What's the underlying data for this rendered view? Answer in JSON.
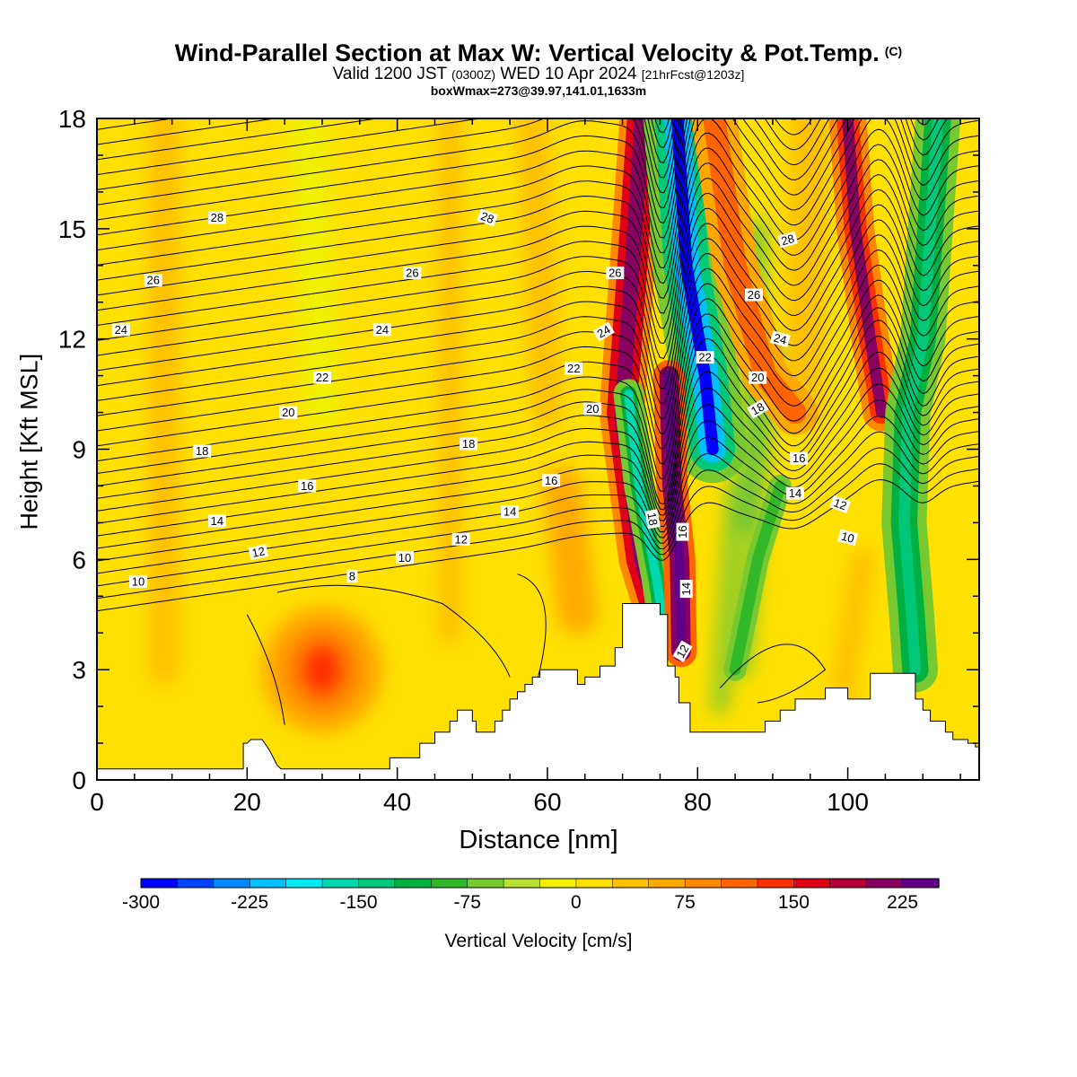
{
  "title": {
    "main": "Wind-Parallel Section at Max W: Vertical Velocity & Pot.Temp.",
    "copyright": "(C)",
    "sub_valid": "Valid 1200 JST",
    "sub_utc": "(0300Z)",
    "sub_date": "WED 10 Apr 2024",
    "sub_fcst": "[21hrFcst@1203z]",
    "info": "boxWmax=273@39.97,141.01,1633m"
  },
  "axes": {
    "xlabel": "Distance [nm]",
    "ylabel": "Height [Kft MSL]",
    "x_ticks": [
      "0",
      "20",
      "40",
      "60",
      "80",
      "100"
    ],
    "y_ticks": [
      "0",
      "3",
      "6",
      "9",
      "12",
      "15",
      "18"
    ]
  },
  "colorbar": {
    "label": "Vertical Velocity [cm/s]",
    "tick_labels": [
      "-300",
      "-225",
      "-150",
      "-75",
      "0",
      "75",
      "150",
      "225"
    ],
    "colors": [
      "#0000ff",
      "#0044ff",
      "#0088ff",
      "#00c0ff",
      "#00e8f0",
      "#00d8b0",
      "#00c878",
      "#00b040",
      "#30b828",
      "#78c830",
      "#b8e030",
      "#f0f000",
      "#ffe000",
      "#ffc000",
      "#ffa800",
      "#ff8800",
      "#ff6400",
      "#ff3000",
      "#e00018",
      "#b80038",
      "#880060",
      "#600088"
    ]
  },
  "chart_data": {
    "type": "heatmap",
    "title": "Wind-Parallel Section at Max W: Vertical Velocity & Pot.Temp.",
    "xlabel": "Distance [nm]",
    "ylabel": "Height [Kft MSL]",
    "xlim": [
      0,
      117.5
    ],
    "ylim": [
      0,
      18
    ],
    "field": "Vertical Velocity [cm/s]",
    "color_range": [
      -300,
      262
    ],
    "color_step": 25,
    "terrain_profile": {
      "x": [
        0,
        19.5,
        19.5,
        20,
        20.5,
        21,
        22,
        23,
        23.5,
        24,
        24.5,
        39,
        39,
        40,
        40,
        43,
        43,
        45,
        45,
        47,
        47,
        48,
        48,
        49,
        49,
        50,
        50,
        50.5,
        50.5,
        53,
        53,
        54,
        54,
        55,
        55,
        56,
        56,
        57,
        57,
        58,
        58,
        59,
        59,
        64,
        64,
        65,
        65,
        67,
        67,
        69,
        69,
        70,
        70,
        75,
        75,
        76,
        76,
        77,
        77,
        77.5,
        77.5,
        79,
        79,
        80,
        80,
        85,
        85,
        89,
        89,
        91,
        91,
        93,
        93,
        97,
        97,
        100,
        100,
        103,
        103,
        109,
        109,
        110,
        110,
        111,
        111,
        112,
        112,
        113,
        113,
        114,
        114,
        116,
        116,
        117,
        117,
        117.5
      ],
      "y": [
        0.3,
        0.3,
        1,
        1,
        1.1,
        1.1,
        1.1,
        0.8,
        0.6,
        0.4,
        0.3,
        0.3,
        0.6,
        0.6,
        0.6,
        0.6,
        1,
        1,
        1.3,
        1.3,
        1.6,
        1.6,
        1.9,
        1.9,
        1.9,
        1.9,
        1.6,
        1.6,
        1.3,
        1.3,
        1.6,
        1.6,
        1.9,
        1.9,
        2.2,
        2.2,
        2.4,
        2.4,
        2.6,
        2.6,
        2.8,
        2.8,
        3,
        3,
        2.6,
        2.6,
        2.8,
        2.8,
        3.1,
        3.1,
        3.6,
        3.6,
        4.8,
        4.8,
        4.5,
        4.5,
        3.1,
        3.1,
        2.8,
        2.8,
        2.1,
        2.1,
        1.3,
        1.3,
        1.3,
        1.3,
        1.3,
        1.3,
        1.6,
        1.6,
        1.9,
        1.9,
        2.2,
        2.2,
        2.5,
        2.5,
        2.2,
        2.2,
        2.9,
        2.9,
        2.2,
        2.2,
        1.9,
        1.9,
        1.6,
        1.6,
        1.6,
        1.6,
        1.3,
        1.3,
        1.1,
        1.1,
        1,
        1,
        0.9,
        0.9
      ]
    },
    "vertical_velocity_features": [
      {
        "x": 30,
        "y": 3.0,
        "peak": 120
      },
      {
        "x": 40,
        "y": 2.8,
        "peak": 60
      },
      {
        "x": 64,
        "y": 5.0,
        "peak": 55
      },
      {
        "x": 73,
        "y": 15,
        "peak": 200
      },
      {
        "x": 78,
        "y": 6,
        "peak": 273
      },
      {
        "x": 77.5,
        "y": 15,
        "peak": -280
      },
      {
        "x": 72,
        "y": 6,
        "peak": -150
      },
      {
        "x": 101,
        "y": 16,
        "peak": 170
      },
      {
        "x": 111,
        "y": 14,
        "peak": -140
      },
      {
        "x": 106,
        "y": 5,
        "peak": -120
      },
      {
        "x": 85,
        "y": 5,
        "peak": -70
      }
    ],
    "potential_temperature_contours": {
      "interval": 1,
      "labeled_levels": [
        8,
        10,
        12,
        14,
        16,
        18,
        20,
        22,
        24,
        26,
        28
      ],
      "labels": [
        {
          "text": "28",
          "x": 16,
          "y": 15.3,
          "angle": 0
        },
        {
          "text": "28",
          "x": 52,
          "y": 15.3,
          "angle": 20
        },
        {
          "text": "28",
          "x": 92,
          "y": 14.7,
          "angle": -15
        },
        {
          "text": "26",
          "x": 7.5,
          "y": 13.6,
          "angle": 0
        },
        {
          "text": "26",
          "x": 42,
          "y": 13.8,
          "angle": 0
        },
        {
          "text": "26",
          "x": 69,
          "y": 13.8,
          "angle": 0
        },
        {
          "text": "26",
          "x": 87.5,
          "y": 13.2,
          "angle": 0
        },
        {
          "text": "24",
          "x": 3.2,
          "y": 12.25,
          "angle": 0
        },
        {
          "text": "24",
          "x": 38,
          "y": 12.25,
          "angle": 0
        },
        {
          "text": "24",
          "x": 67.5,
          "y": 12.2,
          "angle": -30
        },
        {
          "text": "24",
          "x": 91,
          "y": 12.0,
          "angle": 15
        },
        {
          "text": "22",
          "x": 30,
          "y": 10.95,
          "angle": 0
        },
        {
          "text": "22",
          "x": 63.5,
          "y": 11.2,
          "angle": 0
        },
        {
          "text": "22",
          "x": 81,
          "y": 11.5,
          "angle": 0
        },
        {
          "text": "20",
          "x": 25.5,
          "y": 10.0,
          "angle": 0
        },
        {
          "text": "20",
          "x": 66,
          "y": 10.1,
          "angle": 0
        },
        {
          "text": "20",
          "x": 88,
          "y": 10.95,
          "angle": 0
        },
        {
          "text": "18",
          "x": 14,
          "y": 8.95,
          "angle": 0
        },
        {
          "text": "18",
          "x": 49.5,
          "y": 9.15,
          "angle": 0
        },
        {
          "text": "18",
          "x": 88,
          "y": 10.1,
          "angle": -30
        },
        {
          "text": "18",
          "x": 74,
          "y": 7.1,
          "angle": 80
        },
        {
          "text": "16",
          "x": 28,
          "y": 8.0,
          "angle": 0
        },
        {
          "text": "16",
          "x": 60.5,
          "y": 8.15,
          "angle": 0
        },
        {
          "text": "16",
          "x": 93.5,
          "y": 8.75,
          "angle": 0
        },
        {
          "text": "16",
          "x": 78,
          "y": 6.75,
          "angle": -90
        },
        {
          "text": "14",
          "x": 16,
          "y": 7.05,
          "angle": 0
        },
        {
          "text": "14",
          "x": 55,
          "y": 7.3,
          "angle": 0
        },
        {
          "text": "14",
          "x": 93,
          "y": 7.8,
          "angle": 0
        },
        {
          "text": "14",
          "x": 78.5,
          "y": 5.2,
          "angle": -90
        },
        {
          "text": "12",
          "x": 21.5,
          "y": 6.2,
          "angle": -12
        },
        {
          "text": "12",
          "x": 48.5,
          "y": 6.55,
          "angle": 0
        },
        {
          "text": "12",
          "x": 99,
          "y": 7.5,
          "angle": 20
        },
        {
          "text": "12",
          "x": 78,
          "y": 3.5,
          "angle": -60
        },
        {
          "text": "10",
          "x": 5.5,
          "y": 5.4,
          "angle": 0
        },
        {
          "text": "10",
          "x": 41,
          "y": 6.05,
          "angle": 0
        },
        {
          "text": "10",
          "x": 100,
          "y": 6.6,
          "angle": 15
        },
        {
          "text": "8",
          "x": 34,
          "y": 5.55,
          "angle": 0
        }
      ]
    }
  }
}
